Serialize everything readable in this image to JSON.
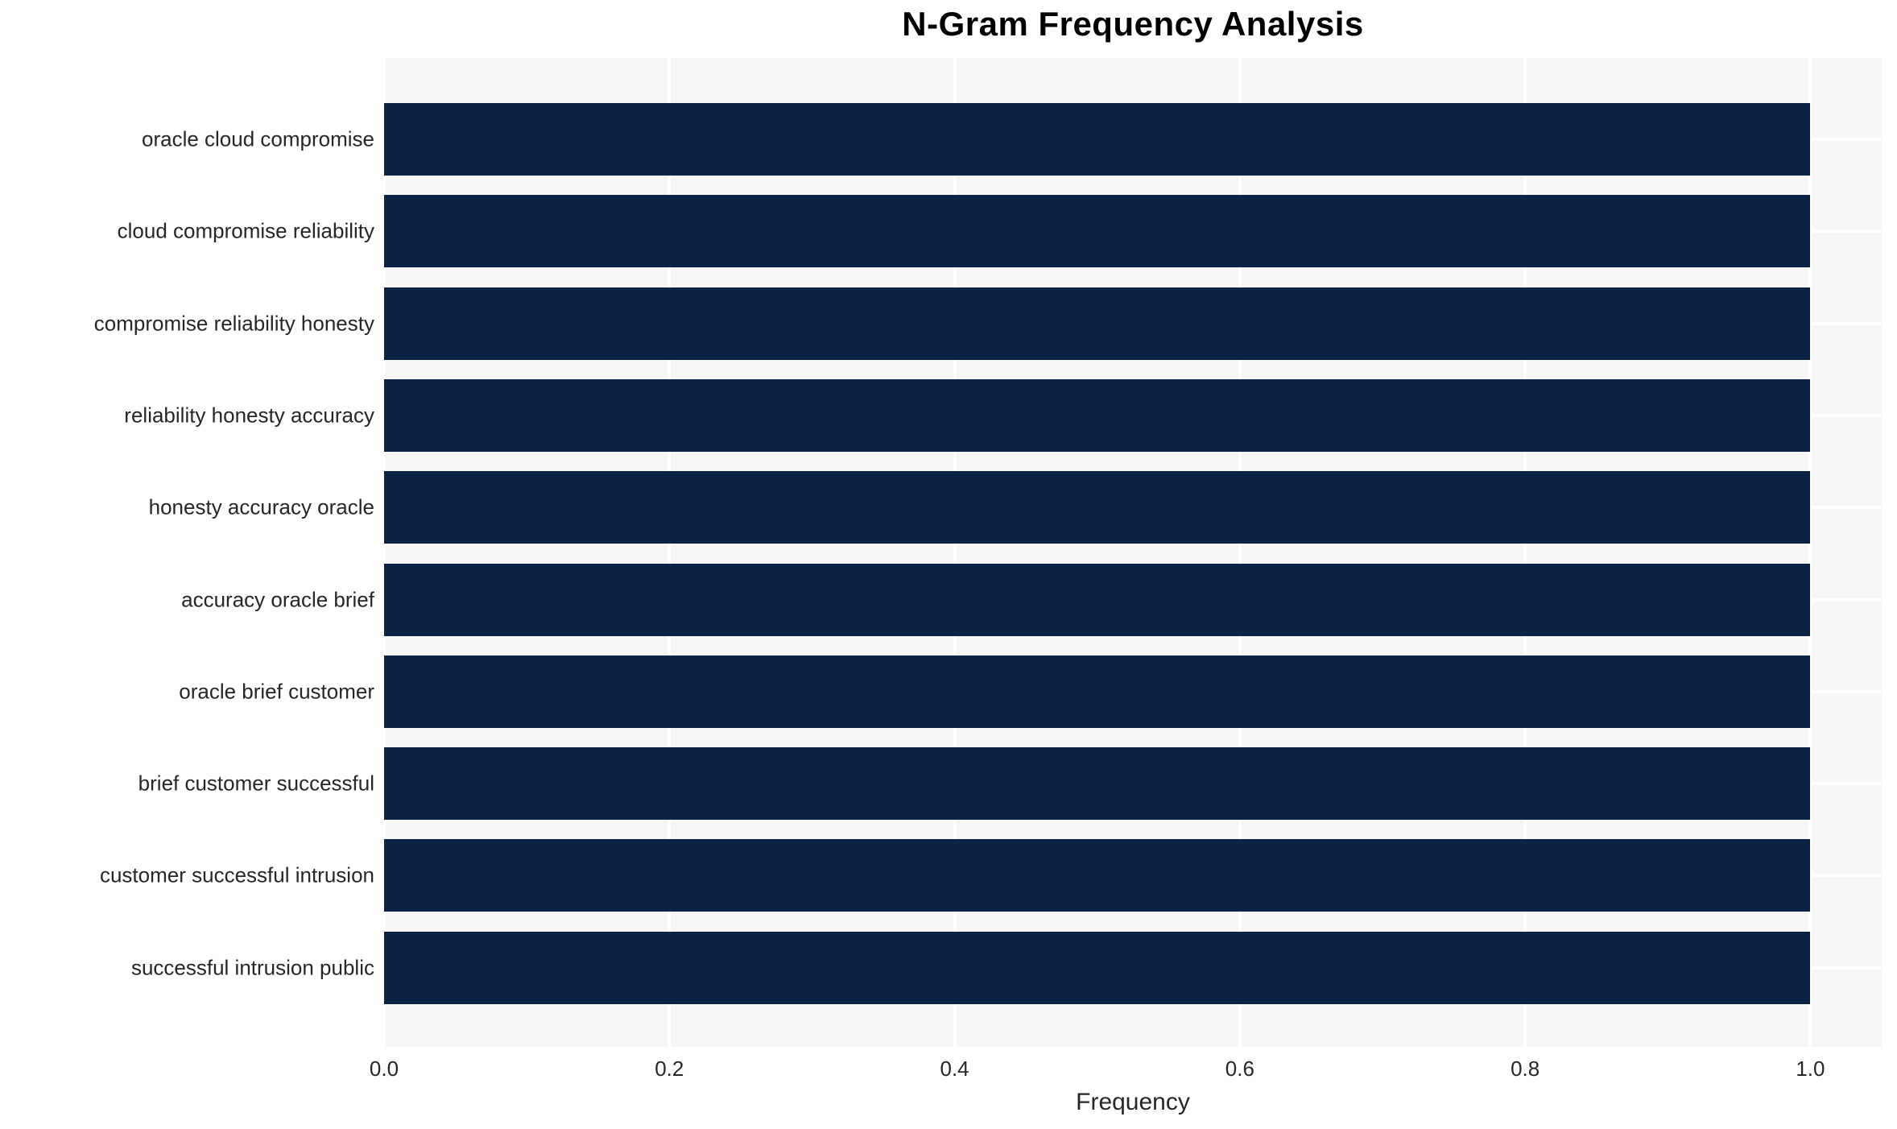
{
  "chart_data": {
    "type": "bar",
    "orientation": "horizontal",
    "title": "N-Gram Frequency Analysis",
    "xlabel": "Frequency",
    "ylabel": "",
    "categories": [
      "oracle cloud compromise",
      "cloud compromise reliability",
      "compromise reliability honesty",
      "reliability honesty accuracy",
      "honesty accuracy oracle",
      "accuracy oracle brief",
      "oracle brief customer",
      "brief customer successful",
      "customer successful intrusion",
      "successful intrusion public"
    ],
    "values": [
      1.0,
      1.0,
      1.0,
      1.0,
      1.0,
      1.0,
      1.0,
      1.0,
      1.0,
      1.0
    ],
    "x_ticks": [
      {
        "value": 0.0,
        "label": "0.0"
      },
      {
        "value": 0.2,
        "label": "0.2"
      },
      {
        "value": 0.4,
        "label": "0.4"
      },
      {
        "value": 0.6,
        "label": "0.6"
      },
      {
        "value": 0.8,
        "label": "0.8"
      },
      {
        "value": 1.0,
        "label": "1.0"
      }
    ],
    "xlim": [
      0,
      1.05
    ],
    "grid": "on",
    "legend": "none",
    "colors": {
      "bar": "#0b2347",
      "plot_background": "#f6f6f7",
      "gridline": "#ffffff",
      "text": "#262626",
      "title_text": "#000000",
      "figure_background": "#ffffff"
    }
  }
}
